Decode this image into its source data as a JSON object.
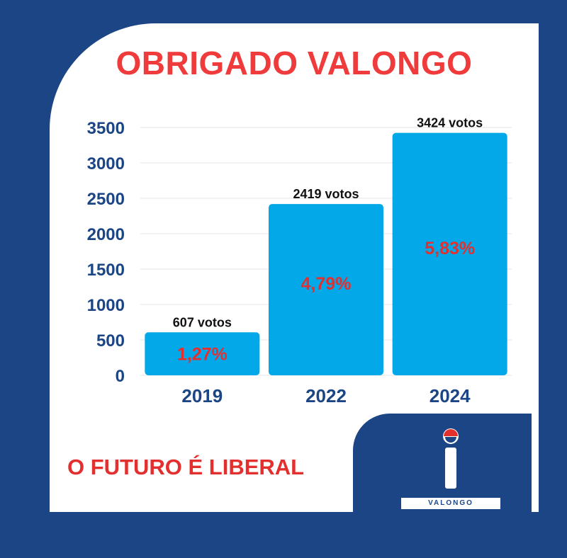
{
  "title": "OBRIGADO VALONGO",
  "slogan": "O FUTURO É LIBERAL",
  "logo": {
    "icon": "liberal-i-logo",
    "text": "VALONGO"
  },
  "colors": {
    "background": "#1c4585",
    "bar": "#03a8e8",
    "accent": "#e3302f"
  },
  "chart_data": {
    "type": "bar",
    "categories": [
      "2019",
      "2022",
      "2024"
    ],
    "values": [
      607,
      2419,
      3424
    ],
    "data_labels": [
      "607 votos",
      "2419 votos",
      "3424 votos"
    ],
    "percent_labels": [
      "1,27%",
      "4,79%",
      "5,83%"
    ],
    "yticks": [
      0,
      500,
      1000,
      1500,
      2000,
      2500,
      3000,
      3500
    ],
    "ylim": [
      0,
      3500
    ],
    "grid": true,
    "title": "",
    "xlabel": "",
    "ylabel": ""
  }
}
